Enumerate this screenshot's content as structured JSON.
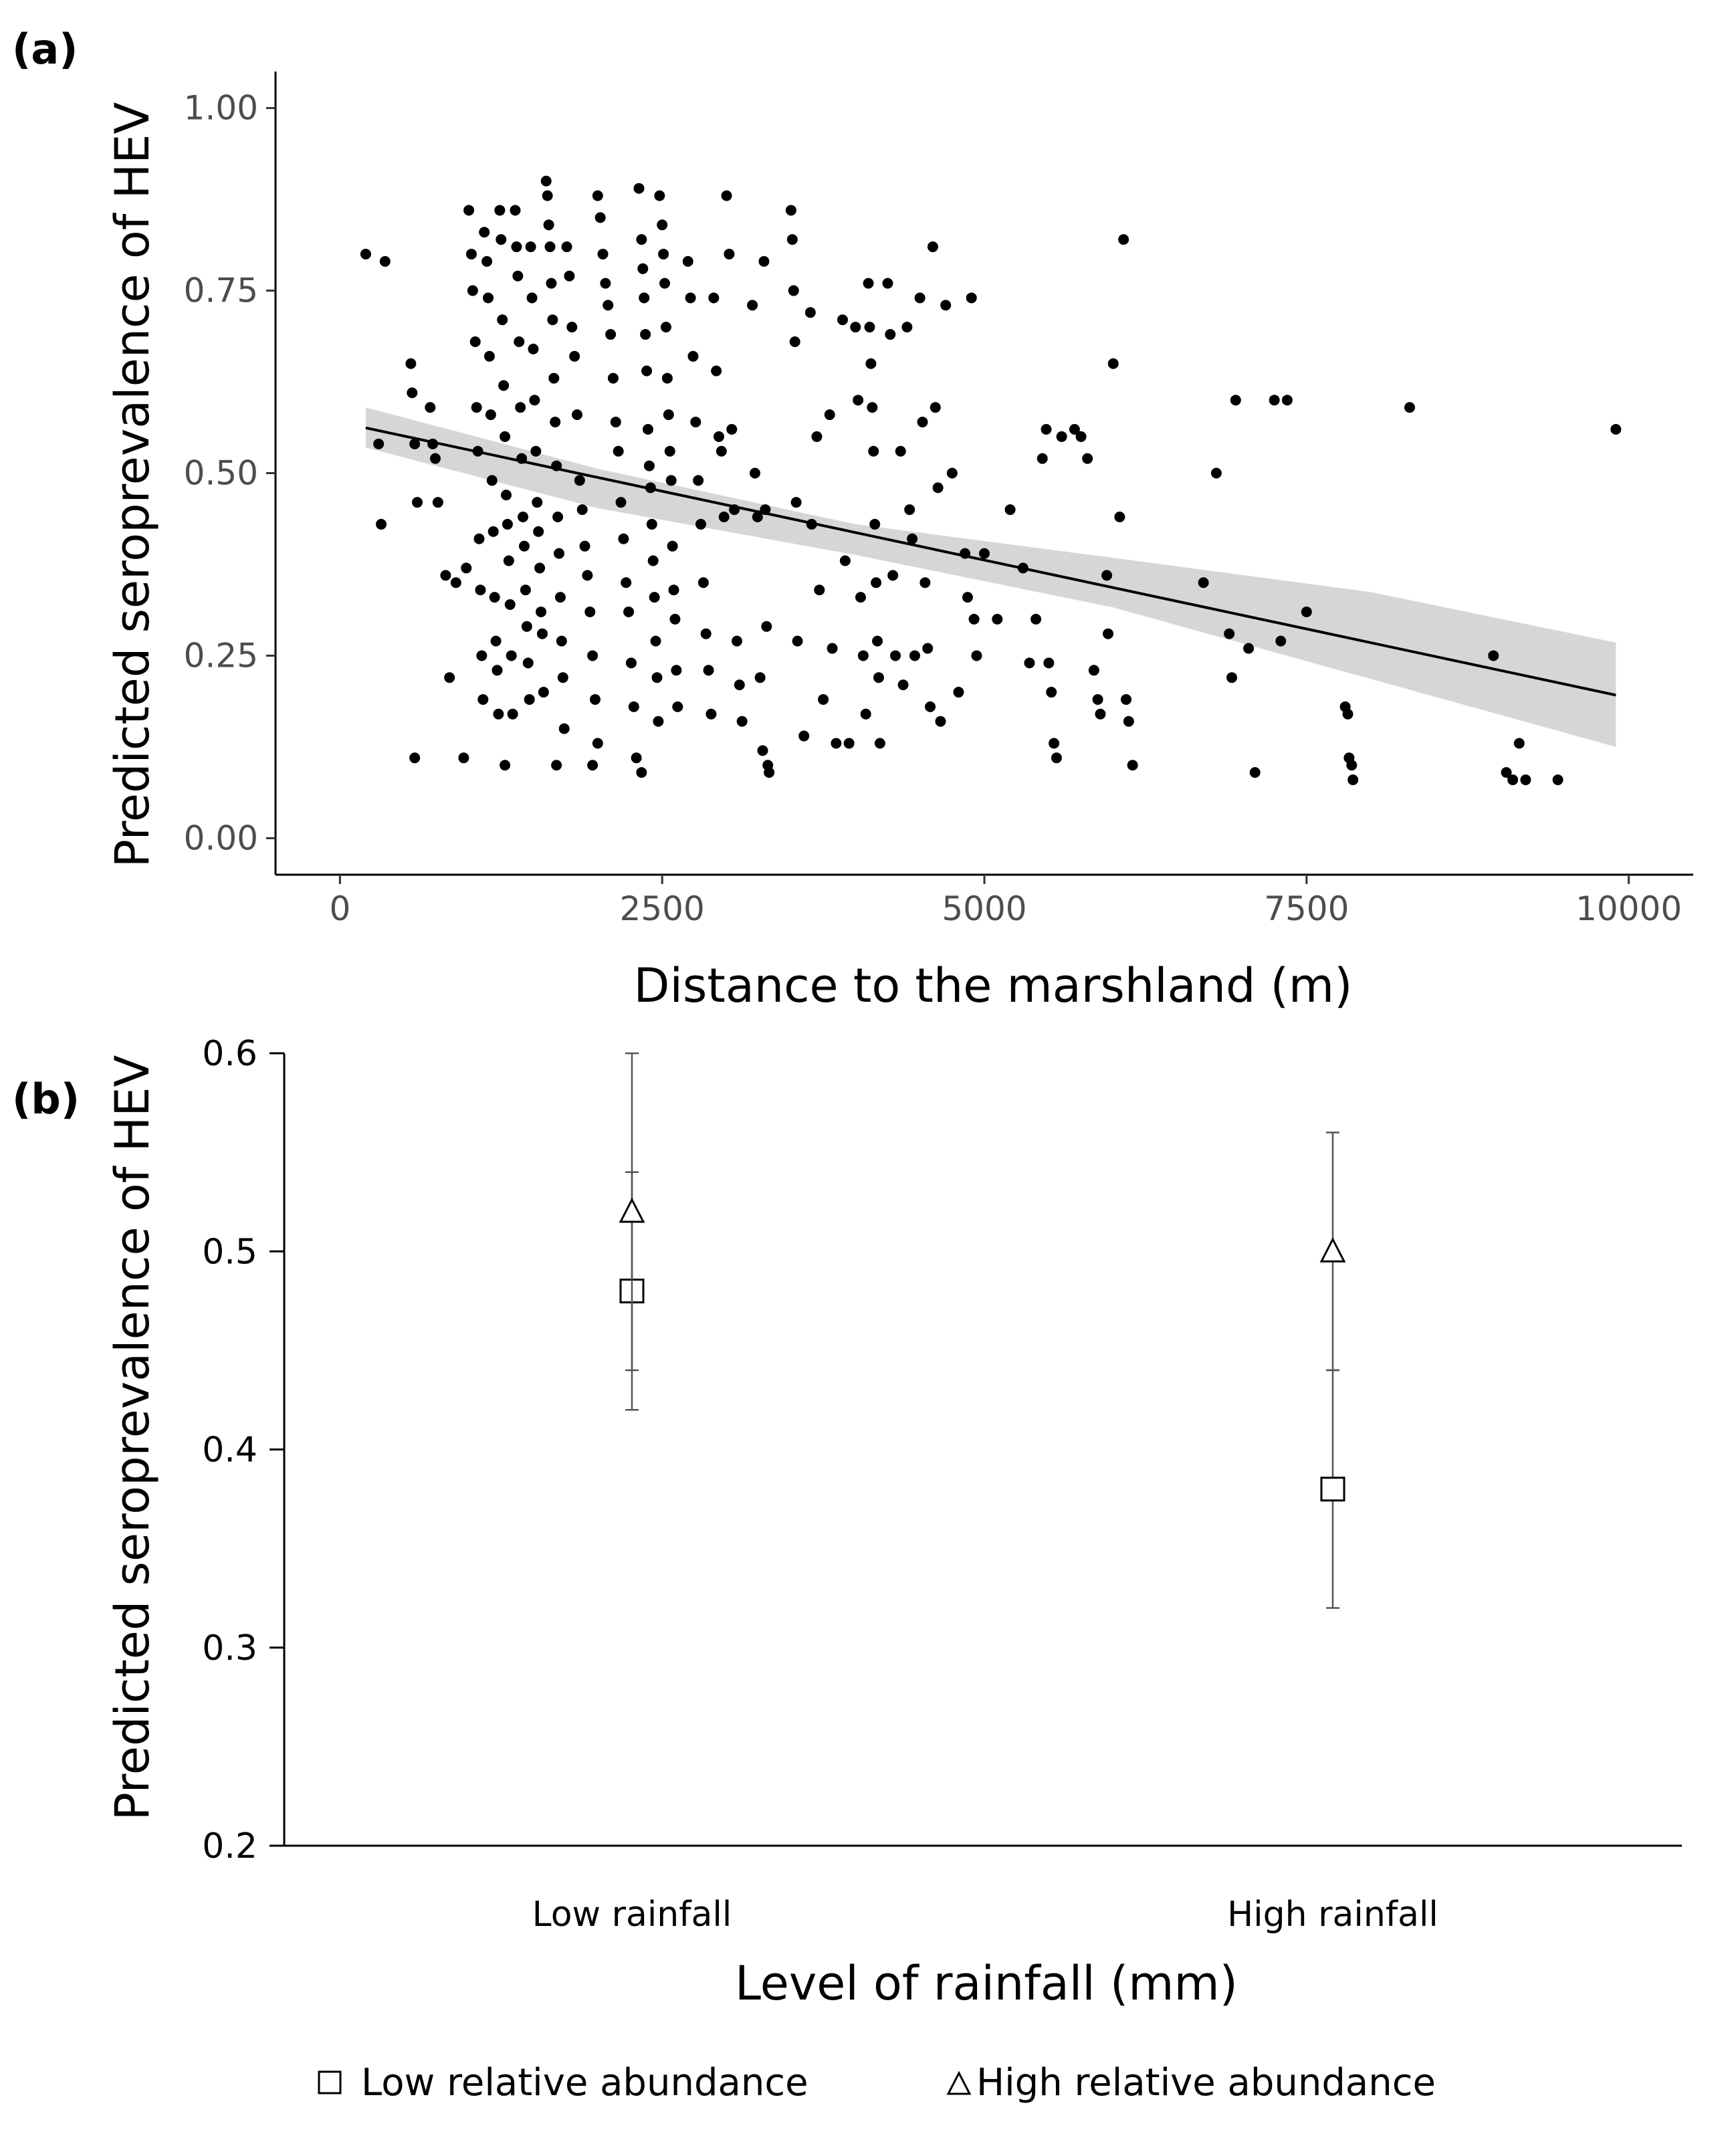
{
  "chart_data": [
    {
      "panel_label": "(a)",
      "type": "scatter",
      "xlabel": "Distance to the marshland (m)",
      "ylabel": "Predicted seroprevalence of HEV",
      "xlim": [
        -500,
        10500
      ],
      "ylim": [
        -0.05,
        1.05
      ],
      "xticks": [
        0,
        2500,
        5000,
        7500,
        10000
      ],
      "xtick_labels": [
        "0",
        "2500",
        "5000",
        "7500",
        "10000"
      ],
      "yticks": [
        0,
        0.25,
        0.5,
        0.75,
        1.0
      ],
      "ytick_labels": [
        "0.00",
        "0.25",
        "0.50",
        "0.75",
        "1.00"
      ],
      "points": [
        [
          200,
          0.8
        ],
        [
          350,
          0.79
        ],
        [
          300,
          0.54
        ],
        [
          320,
          0.43
        ],
        [
          550,
          0.65
        ],
        [
          560,
          0.61
        ],
        [
          580,
          0.54
        ],
        [
          600,
          0.46
        ],
        [
          580,
          0.11
        ],
        [
          700,
          0.59
        ],
        [
          720,
          0.54
        ],
        [
          740,
          0.52
        ],
        [
          760,
          0.46
        ],
        [
          820,
          0.36
        ],
        [
          850,
          0.22
        ],
        [
          900,
          0.35
        ],
        [
          960,
          0.11
        ],
        [
          980,
          0.37
        ],
        [
          1000,
          0.86
        ],
        [
          1020,
          0.8
        ],
        [
          1030,
          0.75
        ],
        [
          1050,
          0.68
        ],
        [
          1060,
          0.59
        ],
        [
          1070,
          0.53
        ],
        [
          1080,
          0.41
        ],
        [
          1090,
          0.34
        ],
        [
          1100,
          0.25
        ],
        [
          1110,
          0.19
        ],
        [
          1120,
          0.83
        ],
        [
          1140,
          0.79
        ],
        [
          1150,
          0.74
        ],
        [
          1160,
          0.66
        ],
        [
          1170,
          0.58
        ],
        [
          1180,
          0.49
        ],
        [
          1190,
          0.42
        ],
        [
          1200,
          0.33
        ],
        [
          1210,
          0.27
        ],
        [
          1220,
          0.23
        ],
        [
          1230,
          0.17
        ],
        [
          1240,
          0.86
        ],
        [
          1250,
          0.82
        ],
        [
          1260,
          0.71
        ],
        [
          1270,
          0.62
        ],
        [
          1280,
          0.55
        ],
        [
          1290,
          0.47
        ],
        [
          1300,
          0.43
        ],
        [
          1310,
          0.38
        ],
        [
          1320,
          0.32
        ],
        [
          1330,
          0.25
        ],
        [
          1340,
          0.17
        ],
        [
          1280,
          0.1
        ],
        [
          1360,
          0.86
        ],
        [
          1370,
          0.81
        ],
        [
          1380,
          0.77
        ],
        [
          1390,
          0.68
        ],
        [
          1400,
          0.59
        ],
        [
          1410,
          0.52
        ],
        [
          1420,
          0.44
        ],
        [
          1430,
          0.4
        ],
        [
          1440,
          0.34
        ],
        [
          1450,
          0.29
        ],
        [
          1460,
          0.24
        ],
        [
          1470,
          0.19
        ],
        [
          1480,
          0.81
        ],
        [
          1490,
          0.74
        ],
        [
          1500,
          0.67
        ],
        [
          1510,
          0.6
        ],
        [
          1520,
          0.53
        ],
        [
          1530,
          0.46
        ],
        [
          1540,
          0.42
        ],
        [
          1550,
          0.37
        ],
        [
          1560,
          0.31
        ],
        [
          1570,
          0.28
        ],
        [
          1580,
          0.2
        ],
        [
          1600,
          0.9
        ],
        [
          1610,
          0.88
        ],
        [
          1620,
          0.84
        ],
        [
          1630,
          0.81
        ],
        [
          1640,
          0.76
        ],
        [
          1650,
          0.71
        ],
        [
          1660,
          0.63
        ],
        [
          1670,
          0.57
        ],
        [
          1680,
          0.51
        ],
        [
          1690,
          0.44
        ],
        [
          1700,
          0.39
        ],
        [
          1710,
          0.33
        ],
        [
          1720,
          0.27
        ],
        [
          1730,
          0.22
        ],
        [
          1740,
          0.15
        ],
        [
          1680,
          0.1
        ],
        [
          1760,
          0.81
        ],
        [
          1780,
          0.77
        ],
        [
          1800,
          0.7
        ],
        [
          1820,
          0.66
        ],
        [
          1840,
          0.58
        ],
        [
          1860,
          0.49
        ],
        [
          1880,
          0.45
        ],
        [
          1900,
          0.4
        ],
        [
          1920,
          0.36
        ],
        [
          1940,
          0.31
        ],
        [
          1960,
          0.25
        ],
        [
          1980,
          0.19
        ],
        [
          2000,
          0.13
        ],
        [
          1960,
          0.1
        ],
        [
          2000,
          0.88
        ],
        [
          2020,
          0.85
        ],
        [
          2040,
          0.8
        ],
        [
          2060,
          0.76
        ],
        [
          2080,
          0.73
        ],
        [
          2100,
          0.69
        ],
        [
          2120,
          0.63
        ],
        [
          2140,
          0.57
        ],
        [
          2160,
          0.53
        ],
        [
          2180,
          0.46
        ],
        [
          2200,
          0.41
        ],
        [
          2220,
          0.35
        ],
        [
          2240,
          0.31
        ],
        [
          2260,
          0.24
        ],
        [
          2280,
          0.18
        ],
        [
          2300,
          0.11
        ],
        [
          2320,
          0.89
        ],
        [
          2340,
          0.82
        ],
        [
          2350,
          0.78
        ],
        [
          2360,
          0.74
        ],
        [
          2370,
          0.69
        ],
        [
          2380,
          0.64
        ],
        [
          2390,
          0.56
        ],
        [
          2400,
          0.51
        ],
        [
          2410,
          0.48
        ],
        [
          2420,
          0.43
        ],
        [
          2430,
          0.38
        ],
        [
          2440,
          0.33
        ],
        [
          2450,
          0.27
        ],
        [
          2460,
          0.22
        ],
        [
          2470,
          0.16
        ],
        [
          2340,
          0.09
        ],
        [
          2480,
          0.88
        ],
        [
          2500,
          0.84
        ],
        [
          2510,
          0.8
        ],
        [
          2520,
          0.76
        ],
        [
          2530,
          0.7
        ],
        [
          2540,
          0.63
        ],
        [
          2550,
          0.58
        ],
        [
          2560,
          0.53
        ],
        [
          2570,
          0.49
        ],
        [
          2580,
          0.4
        ],
        [
          2590,
          0.34
        ],
        [
          2600,
          0.3
        ],
        [
          2610,
          0.23
        ],
        [
          2620,
          0.18
        ],
        [
          2700,
          0.79
        ],
        [
          2720,
          0.74
        ],
        [
          2740,
          0.66
        ],
        [
          2760,
          0.57
        ],
        [
          2780,
          0.49
        ],
        [
          2800,
          0.43
        ],
        [
          2820,
          0.35
        ],
        [
          2840,
          0.28
        ],
        [
          2860,
          0.23
        ],
        [
          2880,
          0.17
        ],
        [
          2900,
          0.74
        ],
        [
          2920,
          0.64
        ],
        [
          2940,
          0.55
        ],
        [
          2960,
          0.53
        ],
        [
          2980,
          0.44
        ],
        [
          3000,
          0.88
        ],
        [
          3020,
          0.8
        ],
        [
          3040,
          0.56
        ],
        [
          3060,
          0.45
        ],
        [
          3080,
          0.27
        ],
        [
          3100,
          0.21
        ],
        [
          3120,
          0.16
        ],
        [
          3200,
          0.73
        ],
        [
          3220,
          0.5
        ],
        [
          3240,
          0.44
        ],
        [
          3260,
          0.22
        ],
        [
          3280,
          0.12
        ],
        [
          3290,
          0.79
        ],
        [
          3300,
          0.45
        ],
        [
          3310,
          0.29
        ],
        [
          3320,
          0.1
        ],
        [
          3330,
          0.09
        ],
        [
          3500,
          0.86
        ],
        [
          3510,
          0.82
        ],
        [
          3520,
          0.75
        ],
        [
          3530,
          0.68
        ],
        [
          3540,
          0.46
        ],
        [
          3550,
          0.27
        ],
        [
          3600,
          0.14
        ],
        [
          3650,
          0.72
        ],
        [
          3660,
          0.43
        ],
        [
          3700,
          0.55
        ],
        [
          3720,
          0.34
        ],
        [
          3750,
          0.19
        ],
        [
          3800,
          0.58
        ],
        [
          3820,
          0.26
        ],
        [
          3850,
          0.13
        ],
        [
          3900,
          0.71
        ],
        [
          3920,
          0.38
        ],
        [
          3950,
          0.13
        ],
        [
          4000,
          0.7
        ],
        [
          4020,
          0.6
        ],
        [
          4040,
          0.33
        ],
        [
          4060,
          0.25
        ],
        [
          4080,
          0.17
        ],
        [
          4100,
          0.76
        ],
        [
          4110,
          0.7
        ],
        [
          4120,
          0.65
        ],
        [
          4130,
          0.59
        ],
        [
          4140,
          0.53
        ],
        [
          4150,
          0.43
        ],
        [
          4160,
          0.35
        ],
        [
          4170,
          0.27
        ],
        [
          4180,
          0.22
        ],
        [
          4190,
          0.13
        ],
        [
          4250,
          0.76
        ],
        [
          4270,
          0.69
        ],
        [
          4290,
          0.36
        ],
        [
          4310,
          0.25
        ],
        [
          4350,
          0.53
        ],
        [
          4370,
          0.21
        ],
        [
          4400,
          0.7
        ],
        [
          4420,
          0.45
        ],
        [
          4440,
          0.41
        ],
        [
          4460,
          0.25
        ],
        [
          4500,
          0.74
        ],
        [
          4520,
          0.57
        ],
        [
          4540,
          0.35
        ],
        [
          4560,
          0.26
        ],
        [
          4580,
          0.18
        ],
        [
          4600,
          0.81
        ],
        [
          4620,
          0.59
        ],
        [
          4640,
          0.48
        ],
        [
          4660,
          0.16
        ],
        [
          4700,
          0.73
        ],
        [
          4750,
          0.5
        ],
        [
          4800,
          0.2
        ],
        [
          4850,
          0.39
        ],
        [
          4870,
          0.33
        ],
        [
          4900,
          0.74
        ],
        [
          4920,
          0.3
        ],
        [
          4940,
          0.25
        ],
        [
          5000,
          0.39
        ],
        [
          5100,
          0.3
        ],
        [
          5200,
          0.45
        ],
        [
          5300,
          0.37
        ],
        [
          5350,
          0.24
        ],
        [
          5400,
          0.3
        ],
        [
          5450,
          0.52
        ],
        [
          5480,
          0.56
        ],
        [
          5500,
          0.24
        ],
        [
          5520,
          0.2
        ],
        [
          5540,
          0.13
        ],
        [
          5560,
          0.11
        ],
        [
          5600,
          0.55
        ],
        [
          5700,
          0.56
        ],
        [
          5750,
          0.55
        ],
        [
          5800,
          0.52
        ],
        [
          5850,
          0.23
        ],
        [
          5880,
          0.19
        ],
        [
          5900,
          0.17
        ],
        [
          5950,
          0.36
        ],
        [
          5960,
          0.28
        ],
        [
          6000,
          0.65
        ],
        [
          6050,
          0.44
        ],
        [
          6080,
          0.82
        ],
        [
          6100,
          0.19
        ],
        [
          6120,
          0.16
        ],
        [
          6150,
          0.1
        ],
        [
          6700,
          0.35
        ],
        [
          6800,
          0.5
        ],
        [
          6900,
          0.28
        ],
        [
          6920,
          0.22
        ],
        [
          6950,
          0.6
        ],
        [
          7050,
          0.26
        ],
        [
          7100,
          0.09
        ],
        [
          7250,
          0.6
        ],
        [
          7300,
          0.27
        ],
        [
          7350,
          0.6
        ],
        [
          7500,
          0.31
        ],
        [
          7800,
          0.18
        ],
        [
          7820,
          0.17
        ],
        [
          7830,
          0.11
        ],
        [
          7850,
          0.1
        ],
        [
          7860,
          0.08
        ],
        [
          8300,
          0.59
        ],
        [
          8950,
          0.25
        ],
        [
          9050,
          0.09
        ],
        [
          9100,
          0.08
        ],
        [
          9150,
          0.13
        ],
        [
          9200,
          0.08
        ],
        [
          9450,
          0.08
        ],
        [
          9900,
          0.56
        ]
      ],
      "fit_line": {
        "x": [
          200,
          9900
        ],
        "y": [
          0.562,
          0.196
        ]
      },
      "confidence_band": {
        "x": [
          200,
          2000,
          4000,
          6000,
          8000,
          9900
        ],
        "lower": [
          0.535,
          0.452,
          0.388,
          0.316,
          0.218,
          0.125
        ],
        "upper": [
          0.59,
          0.506,
          0.43,
          0.384,
          0.337,
          0.268
        ]
      }
    },
    {
      "panel_label": "(b)",
      "type": "scatter",
      "xlabel": "Level of rainfall (mm)",
      "ylabel": "Predicted seroprevalence of HEV",
      "categories": [
        "Low rainfall",
        "High rainfall"
      ],
      "ylim": [
        0.2,
        0.6
      ],
      "yticks": [
        0.2,
        0.3,
        0.4,
        0.5,
        0.6
      ],
      "ytick_labels": [
        "0.2",
        "0.3",
        "0.4",
        "0.5",
        "0.6"
      ],
      "series": [
        {
          "name": "Low relative abundance",
          "marker": "square",
          "values": [
            0.48,
            0.38
          ],
          "lower": [
            0.42,
            0.32
          ],
          "upper": [
            0.54,
            0.44
          ]
        },
        {
          "name": "High relative abundance",
          "marker": "triangle",
          "values": [
            0.52,
            0.5
          ],
          "lower": [
            0.44,
            0.44
          ],
          "upper": [
            0.6,
            0.56
          ]
        }
      ]
    }
  ]
}
